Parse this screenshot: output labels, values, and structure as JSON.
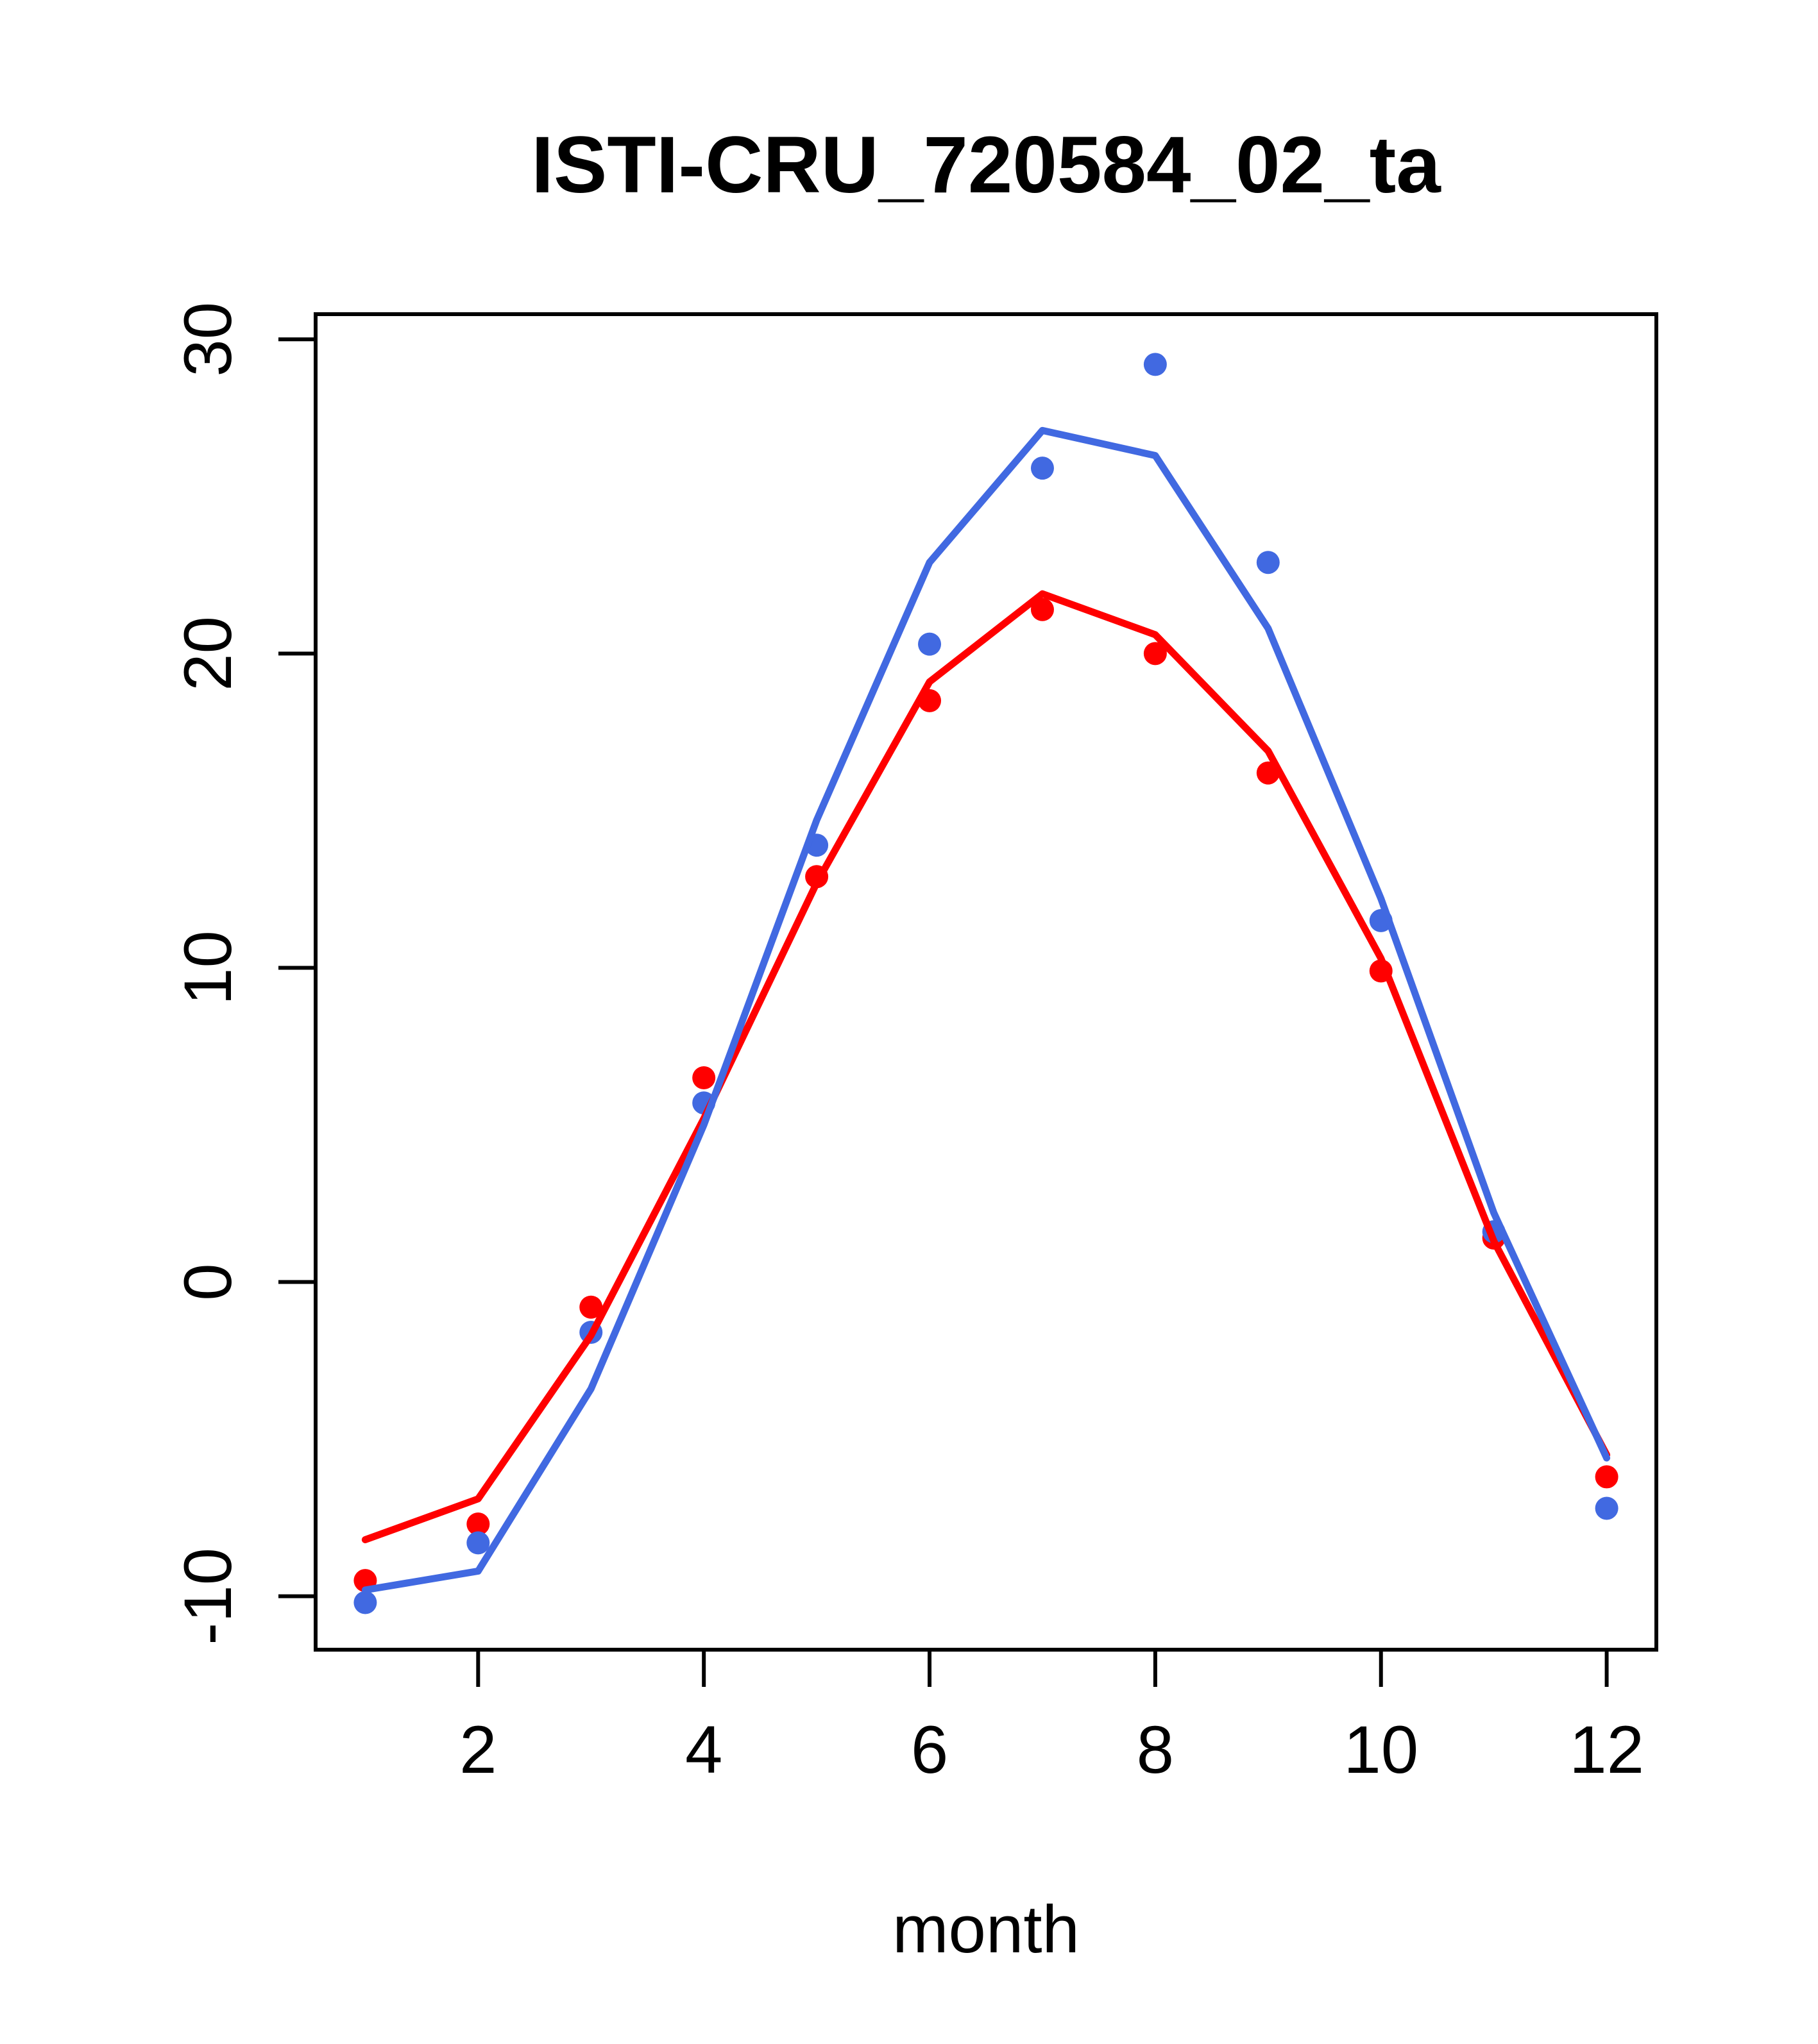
{
  "figure": {
    "title": "ISTI-CRU_720584_02_ta",
    "x_axis_label": "month"
  },
  "chart_data": {
    "type": "line",
    "title": "ISTI-CRU_720584_02_ta",
    "xlabel": "month",
    "ylabel": "",
    "x": [
      1,
      2,
      3,
      4,
      5,
      6,
      7,
      8,
      9,
      10,
      11,
      12
    ],
    "x_tick_labels": [
      "2",
      "4",
      "6",
      "8",
      "10",
      "12"
    ],
    "x_tick_values": [
      2,
      4,
      6,
      8,
      10,
      12
    ],
    "y_tick_labels": [
      "-10",
      "0",
      "10",
      "20",
      "30"
    ],
    "y_tick_values": [
      -10,
      0,
      10,
      20,
      30
    ],
    "xlim": [
      0.56,
      12.44
    ],
    "ylim": [
      -11.7,
      30.8
    ],
    "grid": false,
    "legend": "none",
    "colors": {
      "blue": "#4169E1",
      "red": "#FF0000"
    },
    "series": [
      {
        "id": "red-points",
        "name": "red monthly values (points)",
        "type": "scatter",
        "color": "#FF0000",
        "values": [
          -9.5,
          -7.7,
          -0.8,
          6.5,
          12.9,
          18.5,
          21.4,
          20.0,
          16.2,
          9.9,
          1.4,
          -6.2
        ]
      },
      {
        "id": "blue-points",
        "name": "blue monthly values (points)",
        "type": "scatter",
        "color": "#4169E1",
        "values": [
          -10.2,
          -8.3,
          -1.6,
          5.7,
          13.9,
          20.3,
          25.9,
          29.2,
          22.9,
          11.5,
          1.6,
          -7.2
        ]
      },
      {
        "id": "red-line",
        "name": "red reference curve (line)",
        "type": "line",
        "color": "#FF0000",
        "values": [
          -8.2,
          -6.9,
          -1.7,
          5.2,
          12.7,
          19.1,
          21.9,
          20.6,
          16.9,
          10.3,
          1.3,
          -5.5
        ]
      },
      {
        "id": "blue-line",
        "name": "blue reference curve (line)",
        "type": "line",
        "color": "#4169E1",
        "values": [
          -9.8,
          -9.2,
          -3.4,
          5.0,
          14.7,
          22.9,
          27.1,
          26.3,
          20.8,
          12.2,
          2.2,
          -5.6
        ]
      }
    ]
  }
}
